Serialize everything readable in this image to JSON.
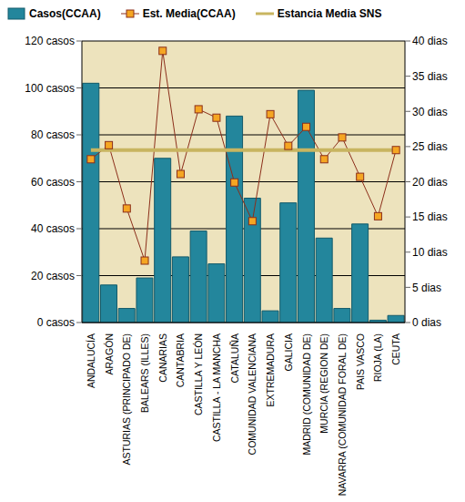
{
  "chart_data": {
    "type": "bar",
    "legend": "top",
    "grid": true,
    "categories": [
      "ANDALUCÍA",
      "ARAGÓN",
      "ASTURIAS (PRINCIPADO DE)",
      "BALEARS (ILLES)",
      "CANARIAS",
      "CANTABRIA",
      "CASTILLA Y LEÓN",
      "CASTILLA - LA MANCHA",
      "CATALUÑA",
      "COMUNIDAD VALENCIANA",
      "EXTREMADURA",
      "GALICIA",
      "MADRID (COMUNIDAD DE)",
      "MURCIA (REGION DE)",
      "NAVARRA (COMUNIDAD FORAL DE)",
      "PAIS VASCO",
      "RIOJA (LA)",
      "CEUTA"
    ],
    "ylim": [
      0,
      120
    ],
    "yticks": [
      {
        "value": 0,
        "label": "0 casos"
      },
      {
        "value": 20,
        "label": "20 casos"
      },
      {
        "value": 40,
        "label": "40 casos"
      },
      {
        "value": 60,
        "label": "60 casos"
      },
      {
        "value": 80,
        "label": "80 casos"
      },
      {
        "value": 100,
        "label": "100 casos"
      },
      {
        "value": 120,
        "label": "120 casos"
      }
    ],
    "y2lim": [
      0,
      40
    ],
    "y2ticks": [
      {
        "value": 0,
        "label": "0 dias"
      },
      {
        "value": 5,
        "label": "5 dias"
      },
      {
        "value": 10,
        "label": "10 dias"
      },
      {
        "value": 15,
        "label": "15 dias"
      },
      {
        "value": 20,
        "label": "20 dias"
      },
      {
        "value": 25,
        "label": "25 dias"
      },
      {
        "value": 30,
        "label": "30 dias"
      },
      {
        "value": 35,
        "label": "35 dias"
      },
      {
        "value": 40,
        "label": "40 dias"
      }
    ],
    "series": [
      {
        "name": "Casos(CCAA)",
        "type": "bar",
        "color": "#23869c",
        "values": [
          102,
          16,
          6,
          19,
          70,
          28,
          39,
          25,
          88,
          53,
          5,
          51,
          99,
          36,
          6,
          42,
          1,
          3
        ]
      },
      {
        "name": "Est. Media(CCAA)",
        "type": "line",
        "axis": "y2",
        "color": "#8b2e1a",
        "marker": "square",
        "values": [
          23.2,
          25.2,
          16.2,
          8.8,
          38.6,
          21.1,
          30.3,
          29.1,
          19.9,
          14.4,
          29.6,
          25.1,
          27.8,
          23.2,
          26.3,
          20.7,
          15.1,
          24.5
        ]
      },
      {
        "name": "Estancia Media SNS",
        "type": "line",
        "axis": "y2",
        "color": "#c8b560",
        "marker": "none",
        "values": [
          24.5,
          24.5,
          24.5,
          24.5,
          24.5,
          24.5,
          24.5,
          24.5,
          24.5,
          24.5,
          24.5,
          24.5,
          24.5,
          24.5,
          24.5,
          24.5,
          24.5,
          24.5
        ]
      }
    ]
  }
}
